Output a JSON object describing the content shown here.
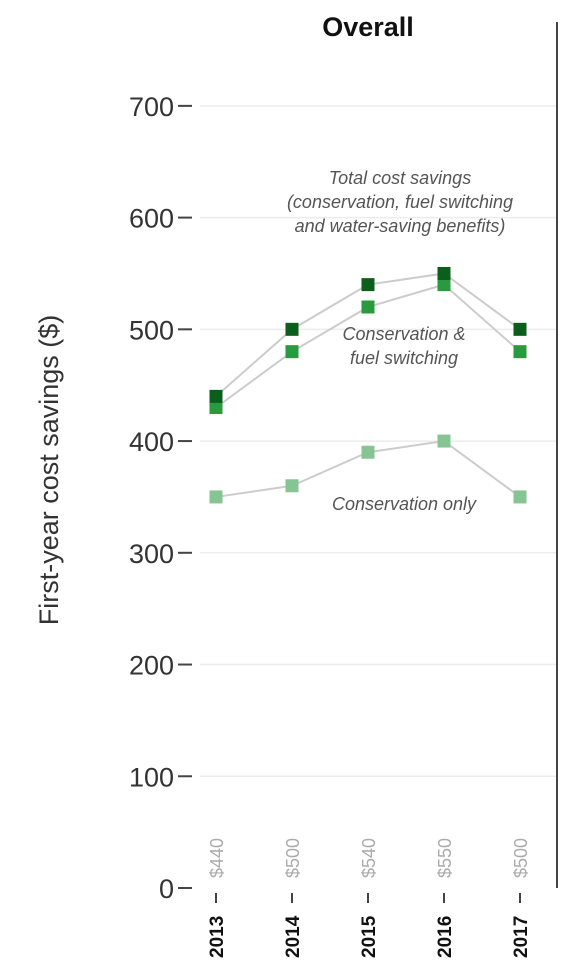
{
  "chart_data": {
    "type": "line",
    "title": "Overall",
    "ylabel": "First-year cost savings ($)",
    "xlabel": "",
    "ylim": [
      0,
      750
    ],
    "yticks": [
      0,
      100,
      200,
      300,
      400,
      500,
      600,
      700
    ],
    "categories": [
      "2013",
      "2014",
      "2015",
      "2016",
      "2017"
    ],
    "grid": true,
    "series": [
      {
        "key": "total",
        "values": [
          440,
          500,
          540,
          550,
          500
        ],
        "color": "#0b5e1c"
      },
      {
        "key": "cons_fuel",
        "values": [
          430,
          480,
          520,
          540,
          480
        ],
        "color": "#2a9a3e"
      },
      {
        "key": "cons_only",
        "values": [
          350,
          360,
          390,
          400,
          350
        ],
        "color": "#86c493"
      }
    ],
    "annotations": {
      "total": [
        "Total cost savings",
        "(conservation, fuel switching",
        "and water-saving benefits)"
      ],
      "cons_fuel": [
        "Conservation &",
        "fuel switching"
      ],
      "cons_only": [
        "Conservation only"
      ]
    },
    "data_labels": [
      "$440",
      "$500",
      "$540",
      "$550",
      "$500"
    ],
    "line_color": "#cccccc",
    "grid_color": "#ececec"
  }
}
